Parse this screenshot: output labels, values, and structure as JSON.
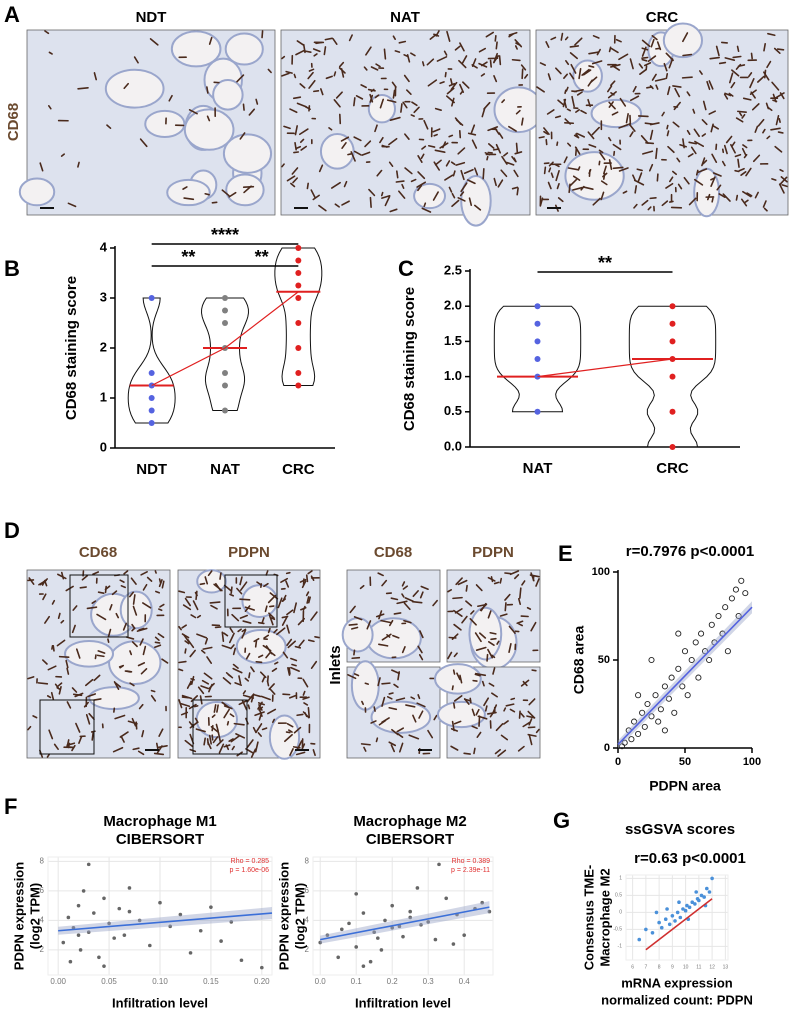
{
  "figure": {
    "panel_labels": [
      "A",
      "B",
      "C",
      "D",
      "E",
      "F",
      "G"
    ],
    "panel_a": {
      "stain": "CD68",
      "columns": [
        "NDT",
        "NAT",
        "CRC"
      ]
    },
    "panel_d": {
      "columns": [
        "CD68",
        "PDPN",
        "CD68",
        "PDPN"
      ],
      "inlets": "Inlets"
    }
  },
  "chart_data": [
    {
      "type": "violin",
      "categories": [
        "NDT",
        "NAT",
        "CRC"
      ],
      "y_label": "CD68 staining score",
      "values": [
        [
          3,
          1.5,
          1.25,
          1,
          0.75,
          0.5
        ],
        [
          3,
          2.75,
          2.5,
          2,
          1.5,
          1.25,
          0.75
        ],
        [
          4,
          3.75,
          3.5,
          3.25,
          3,
          2.5,
          2,
          1.5,
          1.25
        ]
      ],
      "colors": [
        "#5563e0",
        "#808080",
        "#e02020"
      ],
      "medians": [
        1.25,
        2,
        3.125
      ],
      "median_color": "#e02020",
      "ylim": [
        0,
        4
      ],
      "yticks": [
        0,
        1,
        2,
        3,
        4
      ],
      "significance": [
        "****",
        "**",
        "**"
      ]
    },
    {
      "type": "violin",
      "categories": [
        "NAT",
        "CRC"
      ],
      "y_label": "CD68 staining score",
      "values": [
        [
          2,
          1.75,
          1.5,
          1.25,
          1,
          0.5
        ],
        [
          2,
          1.75,
          1.5,
          1.25,
          1,
          0.5,
          0
        ]
      ],
      "colors": [
        "#5563e0",
        "#e02020"
      ],
      "medians": [
        1,
        1.25
      ],
      "median_color": "#e02020",
      "ylim": [
        0,
        2.5
      ],
      "yticks": [
        {
          "value": 0,
          "label": "0.0"
        },
        {
          "value": 0.5,
          "label": "0.5"
        },
        {
          "value": 1,
          "label": "1.0"
        },
        {
          "value": 1.5,
          "label": "1.5"
        },
        {
          "value": 2,
          "label": "2.0"
        },
        {
          "value": 2.5,
          "label": "2.5"
        }
      ],
      "significance": [
        "**"
      ]
    },
    {
      "type": "scatter",
      "stat": "r=0.7976 p<0.0001",
      "x_label": "PDPN area",
      "y_label": "CD68 area",
      "x": [
        5,
        8,
        10,
        12,
        15,
        18,
        20,
        22,
        25,
        28,
        30,
        32,
        35,
        38,
        40,
        42,
        45,
        48,
        50,
        52,
        55,
        58,
        60,
        62,
        65,
        68,
        70,
        72,
        75,
        78,
        80,
        82,
        85,
        88,
        90,
        92,
        95,
        3,
        15,
        25,
        35,
        45
      ],
      "y": [
        3,
        10,
        5,
        15,
        8,
        20,
        12,
        25,
        18,
        30,
        15,
        22,
        35,
        28,
        40,
        20,
        45,
        35,
        55,
        30,
        50,
        60,
        40,
        65,
        55,
        50,
        70,
        60,
        75,
        65,
        80,
        55,
        85,
        90,
        75,
        95,
        88,
        1,
        30,
        50,
        10,
        65
      ],
      "color": "#222222",
      "fit_x": [
        0,
        100
      ],
      "fit_y": [
        2,
        80
      ],
      "fit_color": "#5563e0",
      "xlim": [
        0,
        100
      ],
      "ylim": [
        0,
        100
      ],
      "xticks": [
        0,
        50,
        100
      ],
      "yticks": [
        0,
        50,
        100
      ]
    },
    {
      "type": "scatter",
      "title": [
        "Macrophage M1",
        "CIBERSORT"
      ],
      "annotation": [
        "Rho = 0.285",
        "p = 1.60e-06"
      ],
      "x_label": "Infiltration level",
      "y_label": [
        "PDPN expression",
        "(log2 TPM)"
      ],
      "x": [
        0.005,
        0.01,
        0.012,
        0.015,
        0.02,
        0.022,
        0.025,
        0.03,
        0.035,
        0.04,
        0.045,
        0.05,
        0.055,
        0.06,
        0.065,
        0.07,
        0.08,
        0.09,
        0.1,
        0.11,
        0.12,
        0.13,
        0.14,
        0.15,
        0.16,
        0.17,
        0.18,
        0.2,
        0.03,
        0.07,
        0.02,
        0.045
      ],
      "y": [
        2.5,
        4.2,
        1.2,
        3.5,
        5.0,
        2.0,
        6.0,
        3.2,
        4.5,
        1.5,
        5.5,
        3.8,
        2.8,
        4.8,
        3.0,
        6.2,
        4.0,
        2.3,
        5.2,
        3.6,
        4.4,
        1.8,
        3.3,
        4.9,
        2.6,
        3.9,
        1.3,
        0.8,
        7.8,
        4.6,
        3.0,
        0.9
      ],
      "color": "#666666",
      "fit_x": [
        0,
        0.21
      ],
      "fit_y": [
        3.3,
        4.5
      ],
      "fit_color": "#3b6fd8",
      "grid": true,
      "xlim": [
        -0.01,
        0.21
      ],
      "ylim": [
        0.3,
        8.3
      ],
      "xticks": [
        {
          "value": 0,
          "label": "0.00"
        },
        0.05,
        {
          "value": 0.1,
          "label": "0.10"
        },
        0.15,
        {
          "value": 0.2,
          "label": "0.20"
        }
      ],
      "yticks": [
        2,
        4,
        6,
        8
      ]
    },
    {
      "type": "scatter",
      "title": [
        "Macrophage M2",
        "CIBERSORT"
      ],
      "annotation": [
        "Rho = 0.389",
        "p = 2.39e-11"
      ],
      "x_label": "Infiltration level",
      "y_label": [
        "PDPN expression",
        "(log2 TPM)"
      ],
      "x": [
        0.0,
        0.02,
        0.05,
        0.08,
        0.1,
        0.12,
        0.15,
        0.17,
        0.2,
        0.22,
        0.25,
        0.27,
        0.3,
        0.32,
        0.35,
        0.38,
        0.4,
        0.43,
        0.45,
        0.47,
        0.06,
        0.1,
        0.14,
        0.18,
        0.23,
        0.28,
        0.33,
        0.12,
        0.2,
        0.25,
        0.37,
        0.16
      ],
      "y": [
        2.5,
        3.0,
        1.5,
        3.8,
        2.2,
        4.5,
        3.2,
        2.0,
        5.0,
        3.6,
        4.2,
        6.2,
        3.9,
        2.7,
        5.5,
        4.4,
        3.0,
        4.8,
        5.2,
        4.6,
        3.4,
        5.8,
        1.2,
        4.0,
        2.9,
        3.7,
        7.8,
        0.9,
        3.5,
        4.6,
        2.4,
        2.8
      ],
      "color": "#666666",
      "fit_x": [
        0,
        0.47
      ],
      "fit_y": [
        2.7,
        4.9
      ],
      "fit_color": "#3b6fd8",
      "grid": true,
      "xlim": [
        -0.02,
        0.48
      ],
      "ylim": [
        0.3,
        8.3
      ],
      "xticks": [
        {
          "value": 0,
          "label": "0.0"
        },
        0.1,
        0.2,
        0.3,
        0.4
      ],
      "yticks": [
        2,
        4,
        6,
        8
      ]
    },
    {
      "type": "scatter",
      "title": [
        "ssGSVA scores"
      ],
      "stat": "r=0.63 p<0.0001",
      "x_label": [
        "mRNA expression",
        "normalized count: PDPN"
      ],
      "y_label": [
        "Consensus TME-",
        "Macrophage M2"
      ],
      "x": [
        6.5,
        7,
        7.5,
        8,
        8.2,
        8.5,
        8.8,
        9,
        9.2,
        9.4,
        9.6,
        9.8,
        10,
        10.1,
        10.3,
        10.5,
        10.7,
        10.9,
        11,
        11.2,
        11.4,
        11.6,
        11.8,
        12,
        8.6,
        9.5,
        10.2,
        10.8,
        11.5,
        7.8
      ],
      "y": [
        -0.8,
        -0.5,
        -0.6,
        -0.3,
        -0.45,
        -0.2,
        -0.35,
        -0.1,
        -0.25,
        0.0,
        -0.15,
        0.1,
        0.05,
        0.2,
        0.15,
        0.3,
        0.25,
        0.4,
        0.35,
        0.5,
        0.45,
        0.7,
        0.6,
        1.0,
        0.1,
        0.3,
        -0.2,
        0.6,
        0.2,
        0.0
      ],
      "color": "#4a90d9",
      "fit_x": [
        7,
        12
      ],
      "fit_y": [
        -1.1,
        0.4
      ],
      "fit_color": "#d03030",
      "grid": true,
      "xlim": [
        5.5,
        13.2
      ],
      "ylim": [
        -1.4,
        1.1
      ],
      "xticks": [
        6,
        7,
        8,
        9,
        10,
        11,
        12,
        13
      ],
      "yticks": [
        -1,
        -0.5,
        0,
        0.5,
        1
      ]
    }
  ]
}
